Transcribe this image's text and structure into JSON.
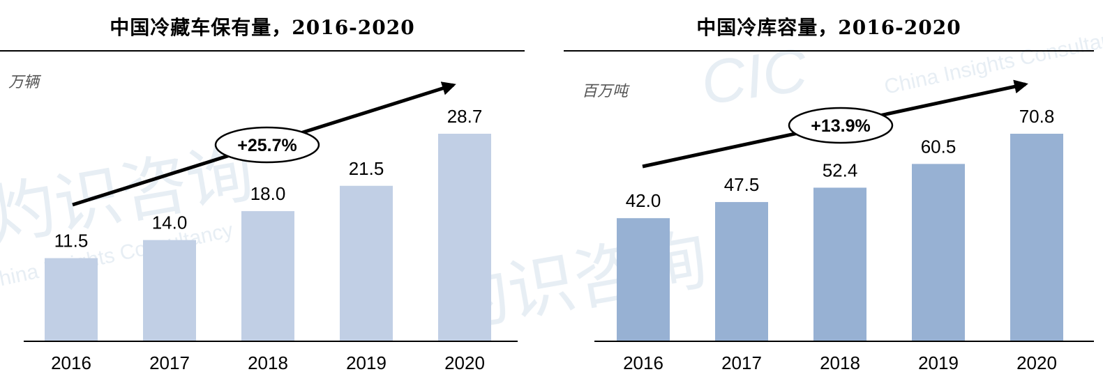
{
  "watermark": {
    "brand": "CIC",
    "tagline": "China Insights Consultancy",
    "chinese": "灼识咨询"
  },
  "chart_data": [
    {
      "type": "bar",
      "title": "中国冷藏车保有量，2016-2020",
      "unit": "万辆",
      "categories": [
        "2016",
        "2017",
        "2018",
        "2019",
        "2020"
      ],
      "values": [
        11.5,
        14.0,
        18.0,
        21.5,
        28.7
      ],
      "value_labels": [
        "11.5",
        "14.0",
        "18.0",
        "21.5",
        "28.7"
      ],
      "ylim": [
        0,
        28.7
      ],
      "bar_color": "#c1cfe5",
      "cagr_label": "+25.7%",
      "grid": false,
      "legend": "none"
    },
    {
      "type": "bar",
      "title": "中国冷库容量，2016-2020",
      "unit": "百万吨",
      "categories": [
        "2016",
        "2017",
        "2018",
        "2019",
        "2020"
      ],
      "values": [
        42.0,
        47.5,
        52.4,
        60.5,
        70.8
      ],
      "value_labels": [
        "42.0",
        "47.5",
        "52.4",
        "60.5",
        "70.8"
      ],
      "ylim": [
        0,
        70.8
      ],
      "bar_color": "#97b1d3",
      "cagr_label": "+13.9%",
      "grid": false,
      "legend": "none"
    }
  ]
}
